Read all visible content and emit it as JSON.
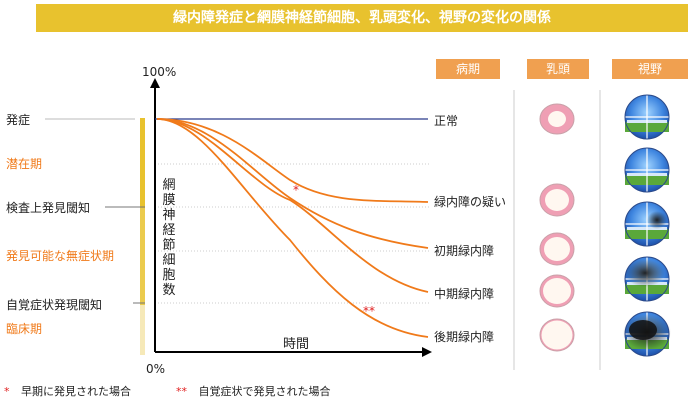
{
  "title": "緑内障発症と網膜神経節細胞、乳頭変化、視野の変化の関係",
  "headers": {
    "period": "病期",
    "papilla": "乳頭",
    "visual_field": "視野"
  },
  "axis": {
    "y_max": "100%",
    "y_min": "0%",
    "y_label": "網膜神経節細胞数",
    "x_label": "時間"
  },
  "left_labels": {
    "onset": "発症",
    "latent": "潜在期",
    "exam_threshold": "検査上発見閾知",
    "detectable": "発見可能な無症状期",
    "symptom_threshold": "自覚症状発現閾知",
    "clinical": "臨床期"
  },
  "stages": [
    "正常",
    "緑内障の疑い",
    "初期緑内障",
    "中期緑内障",
    "後期緑内障"
  ],
  "markers": {
    "single": "*",
    "double": "**"
  },
  "footnotes": [
    {
      "mark": "*",
      "text": "早期に発見された場合"
    },
    {
      "mark": "**",
      "text": "自覚症状で発見された場合"
    }
  ],
  "colors": {
    "title_bg": "#e8c22e",
    "header_bg": "#f0a050",
    "curve": "#f07a1a",
    "normal_line": "#2b3a8c",
    "latent_bar": "#e8c22e",
    "clinical_bar": "#f6e9b8"
  }
}
